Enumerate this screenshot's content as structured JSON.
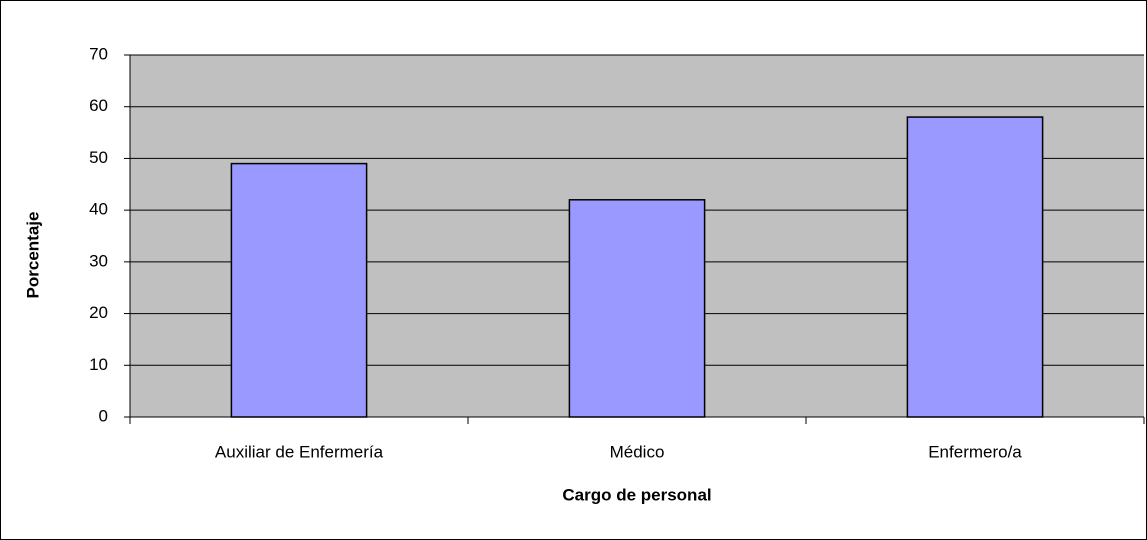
{
  "chart_data": {
    "type": "bar",
    "categories": [
      "Auxiliar de Enfermería",
      "Médico",
      "Enfermero/a"
    ],
    "values": [
      49,
      42,
      58
    ],
    "color": "#9999ff",
    "xlabel": "Cargo de personal",
    "ylabel": "Porcentaje",
    "ylim": [
      0,
      70
    ],
    "yticks": [
      0,
      10,
      20,
      30,
      40,
      50,
      60,
      70
    ],
    "grid": true
  }
}
